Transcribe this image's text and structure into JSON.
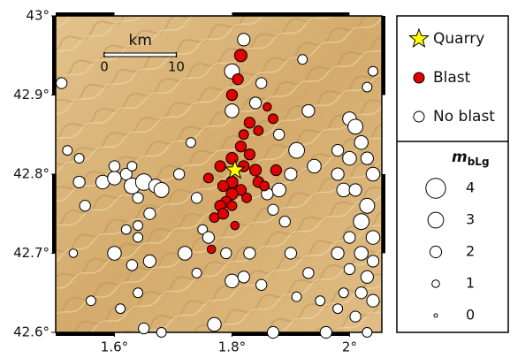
{
  "chart_data": {
    "type": "scatter",
    "xlim": [
      1.5,
      2.055
    ],
    "ylim": [
      42.6,
      43.0
    ],
    "xticks": [
      {
        "value": 1.6,
        "label": "1.6°"
      },
      {
        "value": 1.8,
        "label": "1.8°"
      },
      {
        "value": 2,
        "label": "2°"
      }
    ],
    "yticks": [
      {
        "value": 42.6,
        "label": "42.6°"
      },
      {
        "value": 42.7,
        "label": "42.7°"
      },
      {
        "value": 42.8,
        "label": "42.8°"
      },
      {
        "value": 42.9,
        "label": "42.9°"
      },
      {
        "value": 43,
        "label": "43°"
      }
    ],
    "scale_bar": {
      "label": "km",
      "ticks": [
        0,
        10
      ]
    },
    "series": [
      {
        "name": "Quarry",
        "color": "#ffff00",
        "marker": "star",
        "x": [
          1.805
        ],
        "y": [
          42.805
        ]
      },
      {
        "name": "Blast",
        "color": "#e00000",
        "marker": "circle",
        "x": [
          1.815,
          1.81,
          1.8,
          1.86,
          1.87,
          1.83,
          1.845,
          1.82,
          1.815,
          1.83,
          1.8,
          1.78,
          1.82,
          1.84,
          1.875,
          1.76,
          1.8,
          1.785,
          1.845,
          1.855,
          1.815,
          1.8,
          1.79,
          1.825,
          1.78,
          1.8,
          1.77,
          1.785,
          1.805,
          1.765
        ],
        "y": [
          42.95,
          42.92,
          42.9,
          42.885,
          42.87,
          42.865,
          42.855,
          42.85,
          42.835,
          42.825,
          42.82,
          42.81,
          42.81,
          42.805,
          42.805,
          42.795,
          42.79,
          42.785,
          42.79,
          42.785,
          42.78,
          42.775,
          42.765,
          42.77,
          42.76,
          42.76,
          42.745,
          42.75,
          42.735,
          42.705
        ],
        "mag": [
          2.2,
          1.8,
          1.8,
          1.2,
          1.5,
          1.8,
          1.5,
          1.5,
          1.8,
          1.8,
          2,
          1.8,
          1.8,
          2,
          1.8,
          1.5,
          2,
          1.8,
          1.8,
          1.5,
          1.8,
          2,
          1.8,
          1.5,
          1.8,
          1.5,
          1.5,
          1.8,
          1.2,
          1.2
        ]
      },
      {
        "name": "No blast",
        "color": "#ffffff",
        "marker": "circle",
        "x": [
          1.51,
          1.52,
          1.54,
          1.54,
          1.55,
          1.53,
          1.58,
          1.6,
          1.62,
          1.63,
          1.65,
          1.67,
          1.68,
          1.6,
          1.63,
          1.64,
          1.66,
          1.64,
          1.62,
          1.64,
          1.6,
          1.63,
          1.66,
          1.64,
          1.61,
          1.65,
          1.56,
          1.71,
          1.73,
          1.74,
          1.72,
          1.74,
          1.77,
          1.79,
          1.8,
          1.82,
          1.83,
          1.85,
          1.87,
          1.84,
          1.8,
          1.8,
          1.85,
          1.88,
          1.93,
          1.91,
          1.94,
          1.9,
          1.88,
          1.87,
          1.86,
          1.89,
          1.9,
          1.93,
          1.91,
          1.95,
          1.96,
          1.98,
          2.0,
          2.01,
          2.02,
          2.03,
          2.04,
          2.0,
          1.98,
          1.99,
          2.01,
          2.03,
          2.02,
          2.04,
          2.0,
          1.98,
          2.02,
          2.04,
          2.0,
          2.03,
          2.02,
          2.04,
          1.99,
          1.98,
          2.01,
          2.03,
          2.03,
          1.92,
          1.82,
          2.04,
          1.75,
          1.76,
          1.68
        ],
        "y": [
          42.915,
          42.83,
          42.82,
          42.79,
          42.76,
          42.7,
          42.79,
          42.795,
          42.8,
          42.785,
          42.79,
          42.785,
          42.78,
          42.81,
          42.81,
          42.77,
          42.75,
          42.735,
          42.73,
          42.72,
          42.7,
          42.685,
          42.69,
          42.65,
          42.63,
          42.605,
          42.64,
          42.8,
          42.84,
          42.77,
          42.7,
          42.675,
          42.61,
          42.7,
          42.665,
          42.67,
          42.7,
          42.66,
          42.6,
          42.89,
          42.88,
          42.93,
          42.915,
          42.85,
          42.88,
          42.83,
          42.81,
          42.8,
          42.78,
          42.755,
          42.775,
          42.74,
          42.7,
          42.675,
          42.645,
          42.64,
          42.6,
          42.83,
          42.87,
          42.86,
          42.84,
          42.82,
          42.8,
          42.82,
          42.8,
          42.78,
          42.78,
          42.76,
          42.74,
          42.72,
          42.72,
          42.7,
          42.7,
          42.69,
          42.68,
          42.67,
          42.65,
          42.64,
          42.65,
          42.63,
          42.62,
          42.6,
          42.91,
          42.945,
          42.97,
          42.93,
          42.73,
          42.72,
          42.6
        ],
        "mag": [
          1.8,
          1.5,
          1.5,
          2,
          1.8,
          1.2,
          2.5,
          2.5,
          2,
          3,
          3.2,
          2.5,
          2.8,
          1.8,
          1.5,
          1.8,
          2,
          1.5,
          1.5,
          1.5,
          2.5,
          1.8,
          2.2,
          1.5,
          1.5,
          1.8,
          1.5,
          1.8,
          1.5,
          1.8,
          2.5,
          1.5,
          2.5,
          1.8,
          2.5,
          2,
          2,
          1.8,
          2,
          2,
          2.5,
          2.8,
          1.8,
          1.8,
          2.2,
          3,
          2.5,
          2.2,
          2.5,
          1.8,
          2,
          1.8,
          2,
          1.8,
          1.5,
          1.5,
          2,
          2,
          2.5,
          2.8,
          2.5,
          2.2,
          2.5,
          2.5,
          2.2,
          2.5,
          2.2,
          2.8,
          3,
          2.5,
          2,
          2.2,
          2.5,
          2,
          1.8,
          2.2,
          2,
          2.2,
          1.5,
          1.5,
          1.8,
          1.5,
          1.5,
          1.5,
          2.2,
          1.5,
          1.5,
          2,
          1.5
        ]
      }
    ],
    "size_legend": {
      "title": "m",
      "subscript": "bLg",
      "values": [
        4,
        3,
        2,
        1,
        0
      ]
    }
  }
}
